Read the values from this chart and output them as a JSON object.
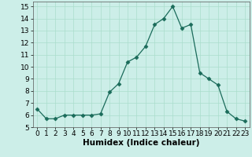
{
  "x": [
    0,
    1,
    2,
    3,
    4,
    5,
    6,
    7,
    8,
    9,
    10,
    11,
    12,
    13,
    14,
    15,
    16,
    17,
    18,
    19,
    20,
    21,
    22,
    23
  ],
  "y": [
    6.5,
    5.7,
    5.7,
    6.0,
    6.0,
    6.0,
    6.0,
    6.1,
    7.9,
    8.6,
    10.4,
    10.8,
    11.7,
    13.5,
    14.0,
    15.0,
    13.2,
    13.5,
    9.5,
    9.0,
    8.5,
    6.3,
    5.7,
    5.5
  ],
  "xlabel": "Humidex (Indice chaleur)",
  "xlim": [
    -0.5,
    23.5
  ],
  "ylim": [
    5,
    15.4
  ],
  "yticks": [
    5,
    6,
    7,
    8,
    9,
    10,
    11,
    12,
    13,
    14,
    15
  ],
  "xticks": [
    0,
    1,
    2,
    3,
    4,
    5,
    6,
    7,
    8,
    9,
    10,
    11,
    12,
    13,
    14,
    15,
    16,
    17,
    18,
    19,
    20,
    21,
    22,
    23
  ],
  "line_color": "#1a6b5a",
  "marker": "D",
  "marker_size": 2.5,
  "bg_color": "#cceee8",
  "grid_color": "#aaddcc",
  "label_fontsize": 7.5,
  "tick_fontsize": 6.5
}
